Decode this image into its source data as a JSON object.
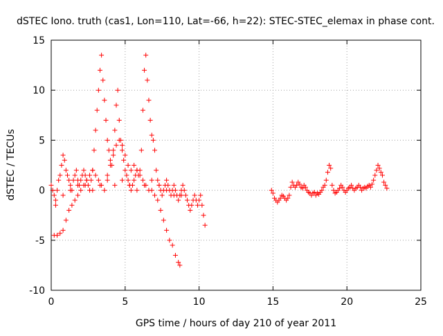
{
  "chart_data": {
    "type": "scatter",
    "title": "dSTEC Iono. truth (cas1, Lon=110, Lat=-66, h=22): STEC-STEC_elemax in phase cont.",
    "xlabel": "GPS time / hours of day 210 of year 2011",
    "ylabel": "dSTEC  / TECUs",
    "xlim": [
      0,
      25
    ],
    "ylim": [
      -10,
      15
    ],
    "xticks": [
      0,
      5,
      10,
      15,
      20,
      25
    ],
    "yticks": [
      -10,
      -5,
      0,
      5,
      10,
      15
    ],
    "xtick_labels": [
      "0",
      "5",
      "10",
      "15",
      "20",
      "25"
    ],
    "ytick_labels": [
      "-10",
      "-5",
      "0",
      "5",
      "10",
      "15"
    ],
    "grid": true,
    "legend": "none",
    "marker": "plus",
    "color": "#ff0000",
    "series": [
      {
        "x": [
          0.0,
          0.1,
          0.2,
          0.3,
          0.4,
          0.5,
          0.6,
          0.7,
          0.8,
          0.9,
          1.0,
          1.1,
          1.2,
          1.3,
          1.4,
          1.5,
          1.6,
          1.7,
          1.8,
          1.9,
          2.0,
          2.1,
          2.2,
          2.3,
          2.4,
          2.5,
          2.6,
          2.7,
          2.8,
          2.9,
          3.0,
          3.1,
          3.2,
          3.3,
          3.4,
          3.5,
          3.6,
          3.7,
          3.8,
          3.9,
          4.0,
          4.1,
          4.2,
          4.3,
          4.4,
          4.5,
          4.6,
          4.7,
          4.8,
          4.9,
          5.0,
          5.1,
          5.2,
          5.3,
          5.4,
          5.5,
          5.6,
          5.7,
          5.8,
          5.9,
          6.0,
          6.1,
          6.2,
          6.3,
          6.4,
          6.5,
          6.6,
          6.7,
          6.8,
          6.9,
          7.0,
          7.1,
          7.2,
          7.3,
          7.4,
          7.5,
          7.6,
          7.7,
          7.8,
          7.9,
          8.0,
          8.1,
          8.2,
          8.3,
          8.4,
          8.5,
          8.6,
          8.7,
          8.8,
          8.9,
          9.0,
          9.1,
          9.2,
          9.3,
          9.4,
          9.5,
          9.6,
          9.7,
          9.8,
          9.9,
          10.0,
          10.1,
          10.2,
          10.3,
          10.4
        ],
        "y": [
          0.5,
          0.0,
          -0.5,
          -1.0,
          0.0,
          1.0,
          1.5,
          2.5,
          3.5,
          3.0,
          2.0,
          1.5,
          1.0,
          0.5,
          0.0,
          1.0,
          1.5,
          2.0,
          1.0,
          0.5,
          1.0,
          1.5,
          2.0,
          1.5,
          1.0,
          0.5,
          0.0,
          1.0,
          2.0,
          4.0,
          6.0,
          8.0,
          10.0,
          12.0,
          13.5,
          11.0,
          9.0,
          7.0,
          5.0,
          4.0,
          3.0,
          2.5,
          4.0,
          6.0,
          8.5,
          10.0,
          7.0,
          5.0,
          4.0,
          3.0,
          2.0,
          1.5,
          1.0,
          0.5,
          0.0,
          0.5,
          1.0,
          1.5,
          2.0,
          1.5,
          2.0,
          4.0,
          8.0,
          12.0,
          13.5,
          11.0,
          9.0,
          7.0,
          5.5,
          5.0,
          4.0,
          2.0,
          1.0,
          0.5,
          0.0,
          -0.5,
          0.0,
          0.5,
          1.0,
          0.5,
          0.0,
          -0.5,
          0.0,
          0.5,
          0.0,
          -0.5,
          -1.0,
          -0.5,
          0.0,
          0.5,
          0.0,
          -0.5,
          -1.0,
          -1.5,
          -2.0,
          -1.5,
          -1.0,
          -0.5,
          -1.0,
          -1.5,
          -1.0,
          -0.5,
          -1.5,
          -2.5,
          -3.5
        ]
      },
      {
        "x": [
          0.2,
          0.4,
          0.6,
          0.8,
          1.0,
          1.2,
          1.4,
          1.6,
          1.8,
          2.0,
          2.2,
          2.4,
          2.6,
          2.8,
          3.0,
          3.2,
          3.4,
          3.6,
          3.8,
          4.0,
          4.2,
          4.4,
          4.6,
          4.8,
          5.0,
          5.2,
          5.4,
          5.6,
          5.8,
          6.0,
          6.2,
          6.4,
          6.6,
          6.8,
          7.0,
          7.2,
          7.4,
          7.6,
          7.8,
          8.0,
          8.2,
          8.4,
          8.6,
          8.7
        ],
        "y": [
          -4.5,
          -4.5,
          -4.3,
          -4.0,
          -3.0,
          -2.0,
          -1.5,
          -1.0,
          -0.5,
          0.0,
          0.5,
          1.0,
          1.5,
          2.0,
          1.5,
          1.0,
          0.5,
          0.0,
          1.0,
          2.5,
          3.5,
          4.5,
          5.0,
          4.5,
          3.5,
          2.5,
          2.0,
          2.5,
          2.0,
          1.5,
          1.0,
          0.5,
          0.0,
          0.0,
          -0.5,
          -1.0,
          -2.0,
          -3.0,
          -4.0,
          -5.0,
          -5.5,
          -6.5,
          -7.2,
          -7.5
        ]
      },
      {
        "x": [
          0.3,
          0.8,
          1.3,
          1.8,
          2.3,
          2.8,
          3.3,
          3.8,
          4.3,
          4.8,
          5.3,
          5.8,
          6.3,
          6.8,
          7.3,
          7.8,
          8.3,
          8.8
        ],
        "y": [
          -1.5,
          -0.5,
          0.0,
          0.5,
          0.5,
          0.0,
          0.5,
          1.5,
          0.5,
          1.0,
          0.5,
          0.0,
          0.5,
          1.0,
          0.5,
          0.0,
          -0.5,
          -0.5
        ]
      },
      {
        "x": [
          14.9,
          15.0,
          15.1,
          15.2,
          15.3,
          15.4,
          15.5,
          15.6,
          15.7,
          15.8,
          15.9,
          16.0,
          16.1,
          16.2,
          16.3,
          16.4,
          16.5,
          16.6,
          16.7,
          16.8,
          16.9,
          17.0,
          17.1,
          17.2,
          17.3,
          17.4,
          17.5,
          17.6,
          17.7,
          17.8,
          17.9,
          18.0,
          18.1,
          18.2,
          18.3,
          18.4,
          18.5,
          18.6,
          18.7,
          18.8,
          18.9,
          19.0,
          19.1,
          19.2,
          19.3,
          19.4,
          19.5,
          19.6,
          19.7,
          19.8,
          19.9,
          20.0,
          20.1,
          20.2,
          20.3,
          20.4,
          20.5,
          20.6,
          20.7,
          20.8,
          20.9,
          21.0,
          21.1,
          21.2,
          21.3,
          21.4,
          21.5,
          21.6,
          21.7,
          21.8,
          21.9,
          22.0,
          22.1,
          22.2,
          22.3,
          22.4,
          22.5,
          22.6,
          22.7
        ],
        "y": [
          0.0,
          -0.3,
          -0.8,
          -1.0,
          -1.2,
          -1.0,
          -0.8,
          -0.5,
          -0.6,
          -0.8,
          -1.0,
          -0.8,
          -0.5,
          0.3,
          0.8,
          0.5,
          0.3,
          0.5,
          0.8,
          0.6,
          0.3,
          0.2,
          0.5,
          0.3,
          0.0,
          -0.2,
          -0.3,
          -0.5,
          -0.3,
          -0.2,
          -0.5,
          -0.3,
          -0.4,
          -0.2,
          0.0,
          0.3,
          0.5,
          1.0,
          1.8,
          2.5,
          2.2,
          0.5,
          0.0,
          -0.3,
          -0.2,
          0.0,
          0.2,
          0.5,
          0.3,
          0.0,
          -0.2,
          0.0,
          0.2,
          0.3,
          0.5,
          0.2,
          0.0,
          0.2,
          0.3,
          0.5,
          0.3,
          0.0,
          0.2,
          0.3,
          0.2,
          0.4,
          0.5,
          0.3,
          0.6,
          1.0,
          1.5,
          2.0,
          2.5,
          2.2,
          1.8,
          1.5,
          0.8,
          0.5,
          0.2
        ]
      }
    ]
  }
}
